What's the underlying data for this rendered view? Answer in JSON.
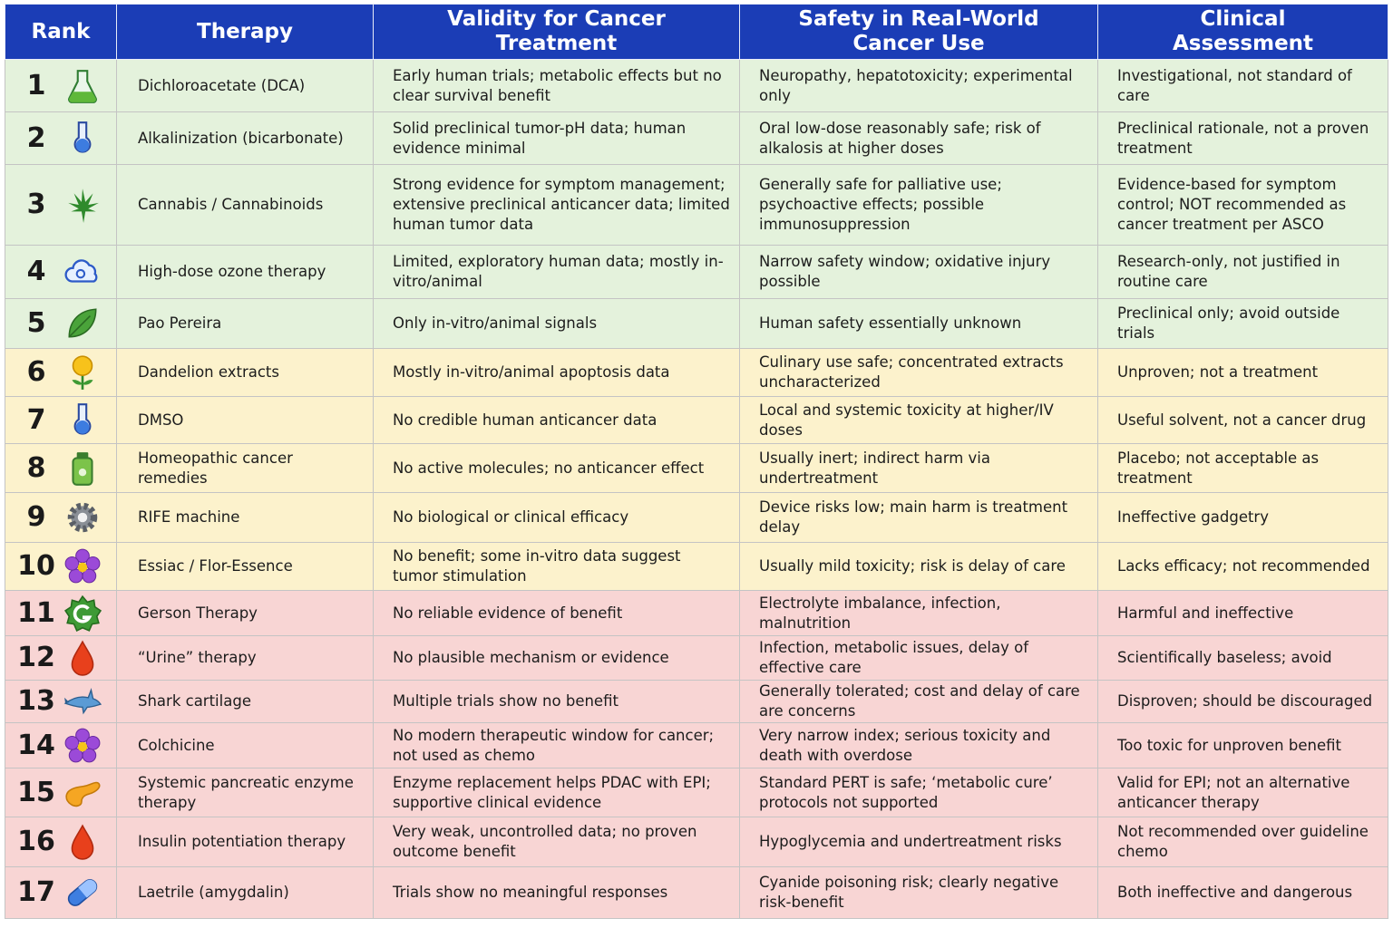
{
  "table": {
    "columns": [
      "Rank",
      "Therapy",
      "Validity for Cancer Treatment",
      "Safety in Real-World Cancer Use",
      "Clinical Assessment"
    ],
    "rows": [
      [
        1,
        "Dichloroacetate (DCA)",
        "Early human trials; metabolic effects but no clear survival benefit",
        "Neuropathy, hepatotoxicity; experimental only",
        "Investigational, not standard of care"
      ],
      [
        2,
        "Alkalinization (bicarbonate)",
        "Solid preclinical tumor-pH data; human evidence minimal",
        "Oral low-dose reasonably safe; risk of alkalosis at higher doses",
        "Preclinical rationale, not a proven treatment"
      ],
      [
        3,
        "Cannabis / Cannabinoids",
        "Strong evidence for symptom management; extensive preclinical anticancer data; limited human tumor data",
        "Generally safe for palliative use; psychoactive effects; possible immunosuppression",
        "Evidence-based for symptom control; NOT recommended as cancer treatment per ASCO"
      ],
      [
        4,
        "High-dose ozone therapy",
        "Limited, exploratory human data; mostly in-vitro/animal",
        "Narrow safety window; oxidative injury possible",
        "Research-only, not justified in routine care"
      ],
      [
        5,
        "Pao Pereira",
        "Only in-vitro/animal signals",
        "Human safety essentially unknown",
        "Preclinical only; avoid outside trials"
      ],
      [
        6,
        "Dandelion extracts",
        "Mostly in-vitro/animal apoptosis data",
        "Culinary use safe; concentrated extracts uncharacterized",
        "Unproven; not a treatment"
      ],
      [
        7,
        "DMSO",
        "No credible human anticancer data",
        "Local and systemic toxicity at higher/IV doses",
        "Useful solvent, not a cancer drug"
      ],
      [
        8,
        "Homeopathic cancer remedies",
        "No active molecules; no anticancer effect",
        "Usually inert; indirect harm via undertreatment",
        "Placebo; not acceptable as treatment"
      ],
      [
        9,
        "RIFE machine",
        "No biological or clinical efficacy",
        "Device risks low; main harm is treatment delay",
        "Ineffective gadgetry"
      ],
      [
        10,
        "Essiac / Flor-Essence",
        "No benefit; some in-vitro data suggest tumor stimulation",
        "Usually mild toxicity; risk is delay of care",
        "Lacks efficacy; not recommended"
      ],
      [
        11,
        "Gerson Therapy",
        "No reliable evidence of benefit",
        "Electrolyte imbalance, infection, malnutrition",
        "Harmful and ineffective"
      ],
      [
        12,
        "“Urine” therapy",
        "No plausible mechanism or evidence",
        "Infection, metabolic issues, delay of effective care",
        "Scientifically baseless; avoid"
      ],
      [
        13,
        "Shark cartilage",
        "Multiple trials show no benefit",
        "Generally tolerated; cost and delay of care are concerns",
        "Disproven; should be discouraged"
      ],
      [
        14,
        "Colchicine",
        "No modern therapeutic window for cancer; not used as chemo",
        "Very narrow index; serious toxicity and death with overdose",
        "Too toxic for unproven benefit"
      ],
      [
        15,
        "Systemic pancreatic enzyme therapy",
        "Enzyme replacement helps PDAC with EPI; supportive clinical evidence",
        "Standard PERT is safe; ‘metabolic cure’ protocols not supported",
        "Valid for EPI; not an alternative anticancer therapy"
      ],
      [
        16,
        "Insulin potentiation therapy",
        "Very weak, uncontrolled data; no proven outcome benefit",
        "Hypoglycemia and undertreatment risks",
        "Not recommended over guideline chemo"
      ],
      [
        17,
        "Laetrile (amygdalin)",
        "Trials show no meaningful responses",
        "Cyanide poisoning risk; clearly negative risk-benefit",
        "Both ineffective and dangerous"
      ]
    ]
  }
}
